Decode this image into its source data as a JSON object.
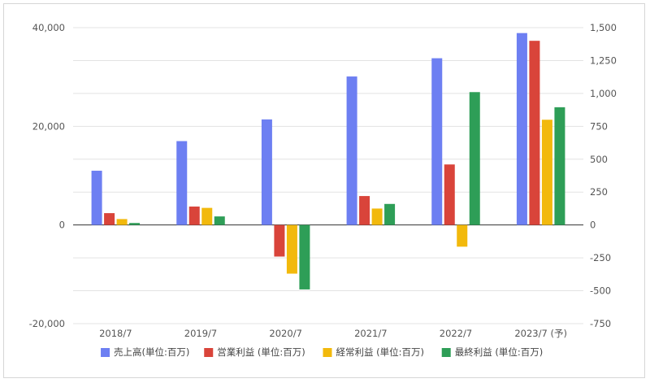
{
  "chart_data": {
    "type": "bar",
    "categories": [
      "2018/7",
      "2019/7",
      "2020/7",
      "2021/7",
      "2022/7",
      "2023/7 (予)"
    ],
    "series": [
      {
        "name": "売上高(単位:百万)",
        "axis": "left",
        "color": "#6d7ff2",
        "values": [
          11000,
          17000,
          21400,
          30100,
          33800,
          38900
        ]
      },
      {
        "name": "営業利益 (単位:百万)",
        "axis": "right",
        "color": "#d9443a",
        "values": [
          90,
          140,
          -240,
          220,
          460,
          1400
        ]
      },
      {
        "name": "経常利益 (単位:百万)",
        "axis": "right",
        "color": "#f2b90c",
        "values": [
          45,
          130,
          -370,
          125,
          -165,
          800
        ]
      },
      {
        "name": "最終利益 (単位:百万)",
        "axis": "right",
        "color": "#2e9e57",
        "values": [
          15,
          65,
          -490,
          160,
          1010,
          895
        ]
      }
    ],
    "left_axis": {
      "min": -20000,
      "max": 40000,
      "ticks": [
        40000,
        20000,
        0,
        -20000
      ],
      "tick_labels": [
        "40,000",
        "20,000",
        "0",
        "-20,000"
      ]
    },
    "right_axis": {
      "min": -750,
      "max": 1500,
      "ticks": [
        1500,
        1250,
        1000,
        750,
        500,
        250,
        0,
        -250,
        -500,
        -750
      ],
      "tick_labels": [
        "1,500",
        "1,250",
        "1,000",
        "750",
        "500",
        "250",
        "0",
        "-250",
        "-500",
        "-750"
      ]
    },
    "grid": true,
    "legend_position": "bottom",
    "title": "",
    "xlabel": "",
    "ylabel": ""
  }
}
